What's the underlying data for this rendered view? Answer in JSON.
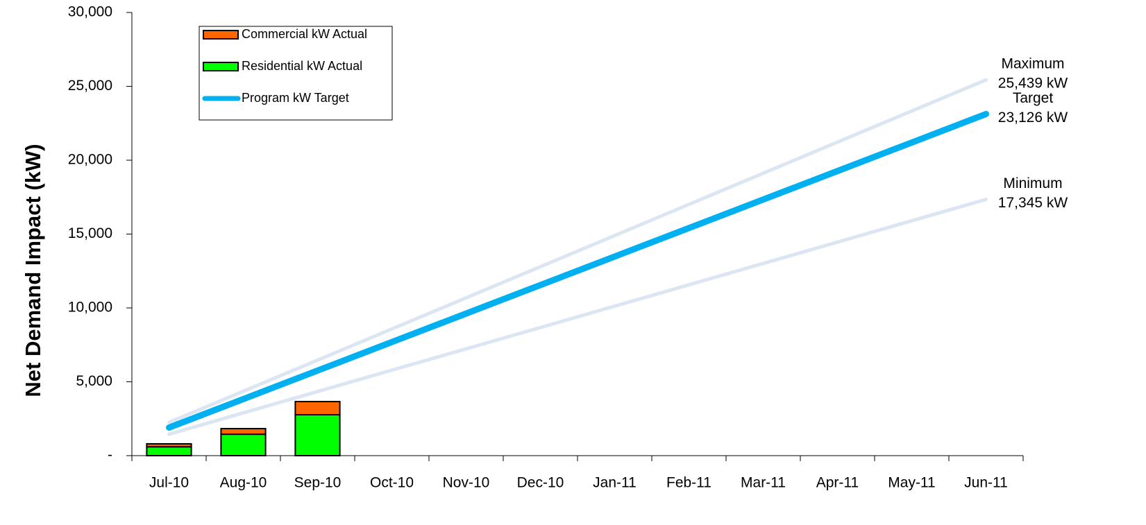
{
  "chart_data": {
    "type": "bar",
    "y_label": "Net Demand Impact (kW)",
    "categories": [
      "Jul-10",
      "Aug-10",
      "Sep-10",
      "Oct-10",
      "Nov-10",
      "Dec-10",
      "Jan-11",
      "Feb-11",
      "Mar-11",
      "Apr-11",
      "May-11",
      "Jun-11"
    ],
    "series": [
      {
        "name": "Commercial kW Actual",
        "kind": "bar",
        "color": "#ff6600",
        "values": [
          200,
          380,
          890,
          null,
          null,
          null,
          null,
          null,
          null,
          null,
          null,
          null
        ]
      },
      {
        "name": "Residential kW Actual",
        "kind": "bar",
        "color": "#00ff00",
        "values": [
          600,
          1450,
          2770,
          null,
          null,
          null,
          null,
          null,
          null,
          null,
          null,
          null
        ]
      },
      {
        "name": "Program kW Target",
        "kind": "line",
        "color": "#00b0f0",
        "end_label": [
          "Target",
          "23,126 kW"
        ],
        "values": [
          1900,
          3830,
          5759,
          7689,
          9619,
          11548,
          13478,
          15408,
          17337,
          19267,
          21196,
          23126
        ]
      }
    ],
    "bounds": [
      {
        "end_label": [
          "Maximum",
          "25,439 kW"
        ],
        "color": "#dce6f2",
        "values": [
          2250,
          4358,
          6466,
          8574,
          10682,
          12790,
          14899,
          17007,
          19115,
          21223,
          23331,
          25439
        ]
      },
      {
        "end_label": [
          "Minimum",
          "17,345 kW"
        ],
        "color": "#dce6f2",
        "values": [
          1450,
          2895,
          4340,
          5785,
          7230,
          8675,
          10120,
          11565,
          13010,
          14455,
          15900,
          17345
        ]
      }
    ],
    "ylim": [
      0,
      30000
    ],
    "yticks": [
      {
        "value": 0,
        "label": "-"
      },
      {
        "value": 5000,
        "label": "5,000"
      },
      {
        "value": 10000,
        "label": "10,000"
      },
      {
        "value": 15000,
        "label": "15,000"
      },
      {
        "value": 20000,
        "label": "20,000"
      },
      {
        "value": 25000,
        "label": "25,000"
      },
      {
        "value": 30000,
        "label": "30,000"
      }
    ]
  }
}
